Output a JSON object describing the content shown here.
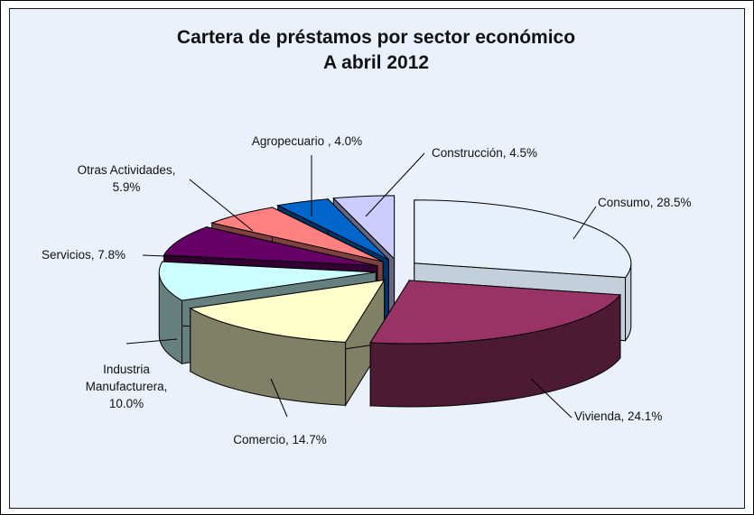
{
  "chart_data": {
    "type": "pie",
    "title": "Cartera de préstamos por sector económico",
    "subtitle": "A abril 2012",
    "slices": [
      {
        "label": "Consumo",
        "value": 28.5,
        "text": "Consumo, 28.5%",
        "top": "#e6f0fb",
        "side": "#c4cfdc"
      },
      {
        "label": "Vivienda",
        "value": 24.1,
        "text": "Vivienda, 24.1%",
        "top": "#993366",
        "side": "#4c1a33"
      },
      {
        "label": "Comercio",
        "value": 14.7,
        "text": "Comercio, 14.7%",
        "top": "#ffffcc",
        "side": "#808066"
      },
      {
        "label": "Industria Manufacturera",
        "value": 10.0,
        "text": "Industria\nManufacturera,\n10.0%",
        "top": "#ccffff",
        "side": "#668080"
      },
      {
        "label": "Servicios",
        "value": 7.8,
        "text": "Servicios, 7.8%",
        "top": "#660066",
        "side": "#330033"
      },
      {
        "label": "Otras Actividades",
        "value": 5.9,
        "text": "Otras Actividades,\n5.9%",
        "top": "#ff8080",
        "side": "#804040"
      },
      {
        "label": "Agropecuario",
        "value": 4.0,
        "text": "Agropecuario , 4.0%",
        "top": "#0066cc",
        "side": "#003366"
      },
      {
        "label": "Construcción",
        "value": 4.5,
        "text": "Construcción, 4.5%",
        "top": "#ccccff",
        "side": "#666680"
      }
    ],
    "legend": "none",
    "grid": false
  },
  "colors": {
    "plot_background": "#eaf1fb",
    "border": "#000000"
  }
}
